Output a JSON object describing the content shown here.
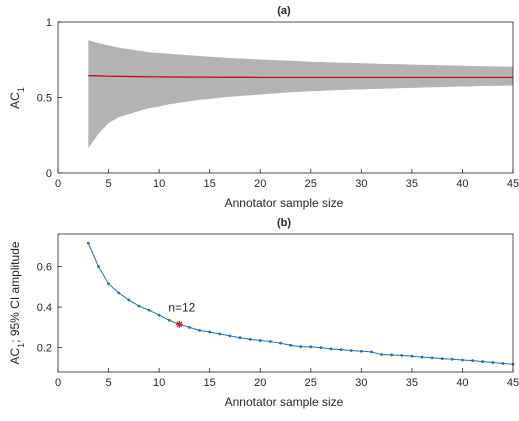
{
  "chart_data": [
    {
      "type": "area",
      "title": "(a)",
      "xlabel": "Annotator sample size",
      "ylabel_main": "AC",
      "ylabel_sub": "1",
      "xlim": [
        0,
        45
      ],
      "ylim": [
        0,
        1
      ],
      "xticks": [
        0,
        5,
        10,
        15,
        20,
        25,
        30,
        35,
        40,
        45
      ],
      "yticks": [
        0,
        0.5,
        1
      ],
      "ytick_labels": [
        "0",
        "0.5",
        "1"
      ],
      "grid": false,
      "band_color": "#b3b3b3",
      "line_color": "#cc0000",
      "x": [
        3,
        4,
        5,
        6,
        7,
        8,
        9,
        10,
        11,
        12,
        13,
        14,
        15,
        16,
        17,
        18,
        19,
        20,
        21,
        22,
        23,
        24,
        25,
        26,
        27,
        28,
        29,
        30,
        31,
        32,
        33,
        34,
        35,
        36,
        37,
        38,
        39,
        40,
        41,
        42,
        43,
        44,
        45
      ],
      "mean": [
        0.645,
        0.643,
        0.641,
        0.64,
        0.639,
        0.638,
        0.637,
        0.637,
        0.636,
        0.636,
        0.635,
        0.635,
        0.635,
        0.634,
        0.634,
        0.634,
        0.634,
        0.633,
        0.633,
        0.633,
        0.633,
        0.633,
        0.633,
        0.633,
        0.633,
        0.633,
        0.633,
        0.633,
        0.633,
        0.633,
        0.633,
        0.633,
        0.633,
        0.633,
        0.633,
        0.633,
        0.633,
        0.633,
        0.633,
        0.633,
        0.633,
        0.633,
        0.633
      ],
      "upper": [
        0.88,
        0.86,
        0.845,
        0.83,
        0.82,
        0.81,
        0.8,
        0.795,
        0.79,
        0.785,
        0.78,
        0.775,
        0.77,
        0.766,
        0.762,
        0.758,
        0.755,
        0.752,
        0.749,
        0.746,
        0.743,
        0.74,
        0.737,
        0.735,
        0.733,
        0.731,
        0.729,
        0.727,
        0.725,
        0.723,
        0.721,
        0.72,
        0.718,
        0.716,
        0.715,
        0.713,
        0.712,
        0.71,
        0.709,
        0.708,
        0.706,
        0.705,
        0.704
      ],
      "lower": [
        0.165,
        0.26,
        0.33,
        0.37,
        0.39,
        0.41,
        0.43,
        0.44,
        0.455,
        0.465,
        0.475,
        0.485,
        0.49,
        0.498,
        0.505,
        0.51,
        0.515,
        0.52,
        0.525,
        0.53,
        0.535,
        0.538,
        0.541,
        0.544,
        0.547,
        0.55,
        0.552,
        0.554,
        0.556,
        0.558,
        0.56,
        0.562,
        0.564,
        0.566,
        0.568,
        0.569,
        0.571,
        0.573,
        0.574,
        0.576,
        0.577,
        0.578,
        0.58
      ]
    },
    {
      "type": "line",
      "title": "(b)",
      "xlabel": "Annotator sample size",
      "ylabel_main": "AC",
      "ylabel_sub": "1",
      "ylabel_rest": "; 95% CI amplitude",
      "xlim": [
        0,
        45
      ],
      "ylim": [
        0.08,
        0.76
      ],
      "xticks": [
        0,
        5,
        10,
        15,
        20,
        25,
        30,
        35,
        40,
        45
      ],
      "yticks": [
        0.2,
        0.4,
        0.6
      ],
      "ytick_labels": [
        "0.2",
        "0.4",
        "0.6"
      ],
      "grid": false,
      "line_color": "#1f6fb5",
      "marker_color": "#e8131b",
      "x": [
        3,
        4,
        5,
        6,
        7,
        8,
        9,
        10,
        11,
        12,
        13,
        14,
        15,
        16,
        17,
        18,
        19,
        20,
        21,
        22,
        23,
        24,
        25,
        26,
        27,
        28,
        29,
        30,
        31,
        32,
        33,
        34,
        35,
        36,
        37,
        38,
        39,
        40,
        41,
        42,
        43,
        44,
        45
      ],
      "y": [
        0.715,
        0.6,
        0.515,
        0.47,
        0.435,
        0.405,
        0.385,
        0.36,
        0.335,
        0.315,
        0.3,
        0.285,
        0.277,
        0.268,
        0.258,
        0.249,
        0.241,
        0.235,
        0.23,
        0.222,
        0.212,
        0.205,
        0.204,
        0.2,
        0.194,
        0.19,
        0.186,
        0.182,
        0.179,
        0.166,
        0.164,
        0.162,
        0.158,
        0.153,
        0.15,
        0.146,
        0.143,
        0.139,
        0.136,
        0.131,
        0.127,
        0.122,
        0.118
      ],
      "highlight": {
        "x": 12,
        "y": 0.315,
        "label": "n=12"
      }
    }
  ]
}
